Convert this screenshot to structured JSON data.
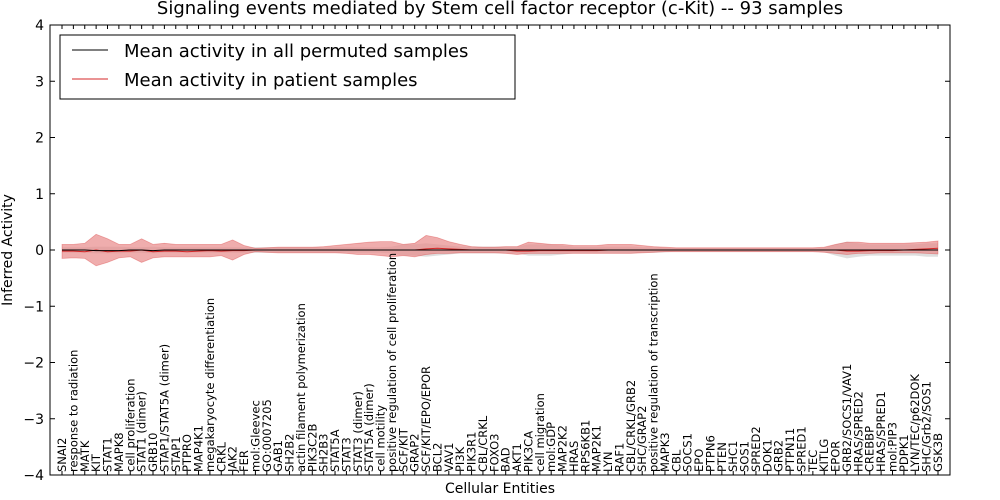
{
  "chart_data": {
    "type": "line",
    "title": "Signaling events mediated by Stem cell factor receptor (c-Kit) -- 93 samples",
    "xlabel": "Cellular Entities",
    "ylabel": "Inferred Activity",
    "ylim": [
      -4,
      4
    ],
    "yticks": [
      -4,
      -3,
      -2,
      -1,
      0,
      1,
      2,
      3,
      4
    ],
    "grid": false,
    "legend_position": "top-left",
    "colors": {
      "permuted": "#000000",
      "patient": "#d62728",
      "patient_band": "#e88a8a",
      "permuted_band": "#c8c8c8"
    },
    "legend": [
      {
        "key": "permuted",
        "label": "Mean activity in all permuted samples"
      },
      {
        "key": "patient",
        "label": "Mean activity in patient samples"
      }
    ],
    "categories": [
      "SNAI2",
      "response to radiation",
      "MATK",
      "KIT",
      "STAT1",
      "MAPK8",
      "cell proliferation",
      "STAT1 (dimer)",
      "GRB10",
      "STAP1/STAT5A (dimer)",
      "STAP1",
      "PTPRO",
      "MAP4K1",
      "megakaryocyte differentiation",
      "CRKL",
      "JAK2",
      "FER",
      "mol:Gleevec",
      "GO:0007205",
      "GAB1",
      "SH2B2",
      "actin filament polymerization",
      "PIK3C2B",
      "SH2B3",
      "STAT5A",
      "STAT3",
      "STAT3 (dimer)",
      "STAT5A (dimer)",
      "cell motility",
      "positive regulation of cell proliferation",
      "SCF/KIT",
      "GRAP2",
      "SCF/KIT/EPO/EPOR",
      "BCL2",
      "VAV1",
      "PI3K",
      "PIK3R1",
      "CBL/CRKL",
      "FOXO3",
      "BAD",
      "AKT1",
      "PIK3CA",
      "cell migration",
      "mol:GDP",
      "MAP2K2",
      "HRAS",
      "RPS6KB1",
      "MAP2K1",
      "LYN",
      "RAF1",
      "CBL/CRKL/GRB2",
      "SHC/GRAP2",
      "positive regulation of transcription",
      "MAPK3",
      "CBL",
      "SOCS1",
      "EPO",
      "PTPN6",
      "PTEN",
      "SHC1",
      "SOS1",
      "SPRED2",
      "DOK1",
      "GRB2",
      "PTPN11",
      "SPRED1",
      "TEC",
      "KITLG",
      "EPOR",
      "GRB2/SOCS1/VAV1",
      "HRAS/SPRED2",
      "CREBBP",
      "HRAS/SPRED1",
      "mol:PIP3",
      "PDPK1",
      "LYN/TEC/p62DOK",
      "SHC/Grb2/SOS1",
      "GSK3B"
    ],
    "series": [
      {
        "name": "Mean activity in all permuted samples",
        "values": [
          0,
          0,
          0,
          -0.01,
          -0.01,
          -0.01,
          0,
          0,
          -0.01,
          0,
          0,
          0,
          0,
          0,
          0,
          0,
          0,
          0,
          0,
          0,
          0,
          0,
          0,
          0,
          0,
          0,
          0,
          0,
          0,
          0,
          0,
          0,
          0,
          0,
          0,
          0,
          0,
          0,
          0,
          0,
          0,
          0,
          0,
          0,
          0,
          0,
          0,
          0,
          0,
          0,
          0,
          0,
          0,
          0,
          0,
          0,
          0,
          0,
          0,
          0,
          0,
          0,
          0,
          0,
          0,
          0,
          0,
          0,
          0,
          0,
          0,
          0,
          0,
          0,
          0,
          0,
          0,
          0
        ],
        "lower": [
          -0.05,
          -0.05,
          -0.05,
          -0.06,
          -0.06,
          -0.06,
          -0.05,
          -0.05,
          -0.06,
          -0.05,
          -0.05,
          -0.05,
          -0.05,
          -0.05,
          -0.05,
          -0.05,
          -0.05,
          -0.05,
          -0.05,
          -0.05,
          -0.05,
          -0.05,
          -0.05,
          -0.05,
          -0.05,
          -0.05,
          -0.05,
          -0.05,
          -0.05,
          -0.06,
          -0.1,
          -0.1,
          -0.12,
          -0.1,
          -0.08,
          -0.06,
          -0.06,
          -0.06,
          -0.06,
          -0.06,
          -0.06,
          -0.1,
          -0.1,
          -0.1,
          -0.08,
          -0.06,
          -0.06,
          -0.06,
          -0.06,
          -0.06,
          -0.06,
          -0.05,
          -0.05,
          -0.04,
          -0.03,
          -0.03,
          -0.03,
          -0.03,
          -0.03,
          -0.03,
          -0.03,
          -0.03,
          -0.03,
          -0.03,
          -0.03,
          -0.03,
          -0.03,
          -0.04,
          -0.1,
          -0.15,
          -0.12,
          -0.1,
          -0.1,
          -0.1,
          -0.1,
          -0.1,
          -0.12,
          -0.12
        ],
        "upper": [
          0.05,
          0.05,
          0.05,
          0.06,
          0.06,
          0.06,
          0.05,
          0.05,
          0.06,
          0.05,
          0.05,
          0.05,
          0.05,
          0.05,
          0.05,
          0.05,
          0.05,
          0.05,
          0.05,
          0.05,
          0.05,
          0.05,
          0.05,
          0.05,
          0.05,
          0.05,
          0.05,
          0.05,
          0.05,
          0.06,
          0.1,
          0.1,
          0.12,
          0.1,
          0.08,
          0.06,
          0.06,
          0.06,
          0.06,
          0.06,
          0.06,
          0.1,
          0.1,
          0.1,
          0.08,
          0.06,
          0.06,
          0.06,
          0.06,
          0.06,
          0.06,
          0.05,
          0.05,
          0.04,
          0.03,
          0.03,
          0.03,
          0.03,
          0.03,
          0.03,
          0.03,
          0.03,
          0.03,
          0.03,
          0.03,
          0.03,
          0.03,
          0.04,
          0.1,
          0.15,
          0.12,
          0.1,
          0.1,
          0.1,
          0.1,
          0.1,
          0.12,
          0.12
        ]
      },
      {
        "name": "Mean activity in patient samples",
        "values": [
          -0.02,
          -0.02,
          -0.03,
          0.0,
          -0.03,
          -0.02,
          -0.02,
          0.0,
          -0.03,
          -0.02,
          -0.02,
          -0.03,
          -0.02,
          -0.01,
          -0.02,
          -0.01,
          -0.01,
          0,
          0,
          0,
          0,
          0,
          0,
          0,
          0,
          0,
          0,
          0,
          0,
          0,
          0,
          0,
          0.02,
          0.03,
          0.02,
          0.01,
          0,
          0,
          0,
          0,
          -0.02,
          -0.02,
          -0.01,
          -0.01,
          -0.01,
          -0.01,
          -0.01,
          -0.01,
          0,
          0,
          0,
          0,
          0,
          0,
          0,
          0,
          0,
          0,
          0,
          0,
          0,
          0,
          0,
          0,
          0,
          0,
          0,
          0,
          0,
          -0.02,
          -0.02,
          -0.01,
          -0.01,
          -0.01,
          0,
          0.01,
          0.02,
          0.03
        ],
        "lower": [
          -0.15,
          -0.14,
          -0.15,
          -0.28,
          -0.22,
          -0.14,
          -0.12,
          -0.22,
          -0.14,
          -0.12,
          -0.12,
          -0.12,
          -0.12,
          -0.12,
          -0.1,
          -0.18,
          -0.08,
          -0.03,
          -0.04,
          -0.05,
          -0.05,
          -0.05,
          -0.05,
          -0.05,
          -0.05,
          -0.06,
          -0.08,
          -0.08,
          -0.1,
          -0.12,
          -0.1,
          -0.12,
          -0.08,
          -0.06,
          -0.06,
          -0.05,
          -0.05,
          -0.05,
          -0.05,
          -0.06,
          -0.08,
          -0.06,
          -0.06,
          -0.06,
          -0.06,
          -0.06,
          -0.06,
          -0.06,
          -0.06,
          -0.06,
          -0.06,
          -0.05,
          -0.04,
          -0.03,
          -0.03,
          -0.03,
          -0.03,
          -0.03,
          -0.03,
          -0.03,
          -0.03,
          -0.03,
          -0.03,
          -0.03,
          -0.03,
          -0.03,
          -0.03,
          -0.04,
          -0.06,
          -0.08,
          -0.06,
          -0.06,
          -0.05,
          -0.05,
          -0.05,
          -0.05,
          -0.06,
          -0.07
        ],
        "upper": [
          0.1,
          0.1,
          0.12,
          0.28,
          0.2,
          0.1,
          0.1,
          0.2,
          0.1,
          0.12,
          0.1,
          0.1,
          0.1,
          0.1,
          0.1,
          0.18,
          0.08,
          0.03,
          0.04,
          0.05,
          0.05,
          0.05,
          0.05,
          0.06,
          0.08,
          0.1,
          0.12,
          0.14,
          0.15,
          0.15,
          0.1,
          0.12,
          0.26,
          0.22,
          0.15,
          0.1,
          0.06,
          0.05,
          0.05,
          0.06,
          0.06,
          0.14,
          0.12,
          0.1,
          0.1,
          0.08,
          0.08,
          0.08,
          0.1,
          0.1,
          0.1,
          0.08,
          0.06,
          0.05,
          0.04,
          0.04,
          0.04,
          0.04,
          0.04,
          0.04,
          0.04,
          0.04,
          0.04,
          0.04,
          0.04,
          0.04,
          0.04,
          0.05,
          0.1,
          0.14,
          0.14,
          0.12,
          0.12,
          0.12,
          0.12,
          0.13,
          0.14,
          0.16
        ]
      }
    ]
  }
}
